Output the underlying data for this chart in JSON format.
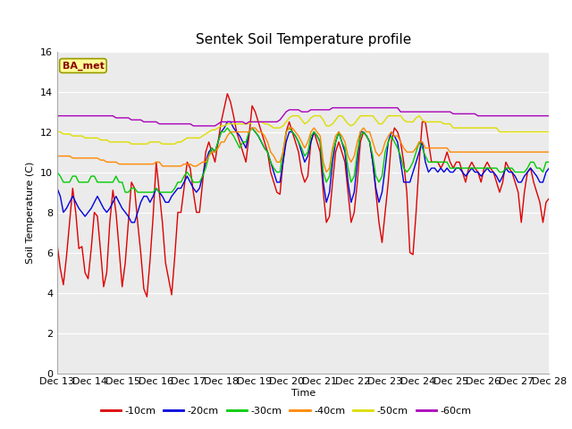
{
  "title": "Sentek Soil Temperature profile",
  "xlabel": "Time",
  "ylabel": "Soil Temperature (C)",
  "ylim": [
    0,
    16
  ],
  "yticks": [
    0,
    2,
    4,
    6,
    8,
    10,
    12,
    14,
    16
  ],
  "annotation": "BA_met",
  "fig_bg_color": "#ffffff",
  "plot_bg_color": "#ebebeb",
  "colors": {
    "-10cm": "#dd0000",
    "-20cm": "#0000dd",
    "-30cm": "#00cc00",
    "-40cm": "#ff8800",
    "-50cm": "#dddd00",
    "-60cm": "#aa00bb"
  },
  "x_labels": [
    "Dec 13",
    "Dec 14",
    "Dec 15",
    "Dec 16",
    "Dec 17",
    "Dec 18",
    "Dec 19",
    "Dec 20",
    "Dec 21",
    "Dec 22",
    "Dec 23",
    "Dec 24",
    "Dec 25",
    "Dec 26",
    "Dec 27",
    "Dec 28"
  ]
}
